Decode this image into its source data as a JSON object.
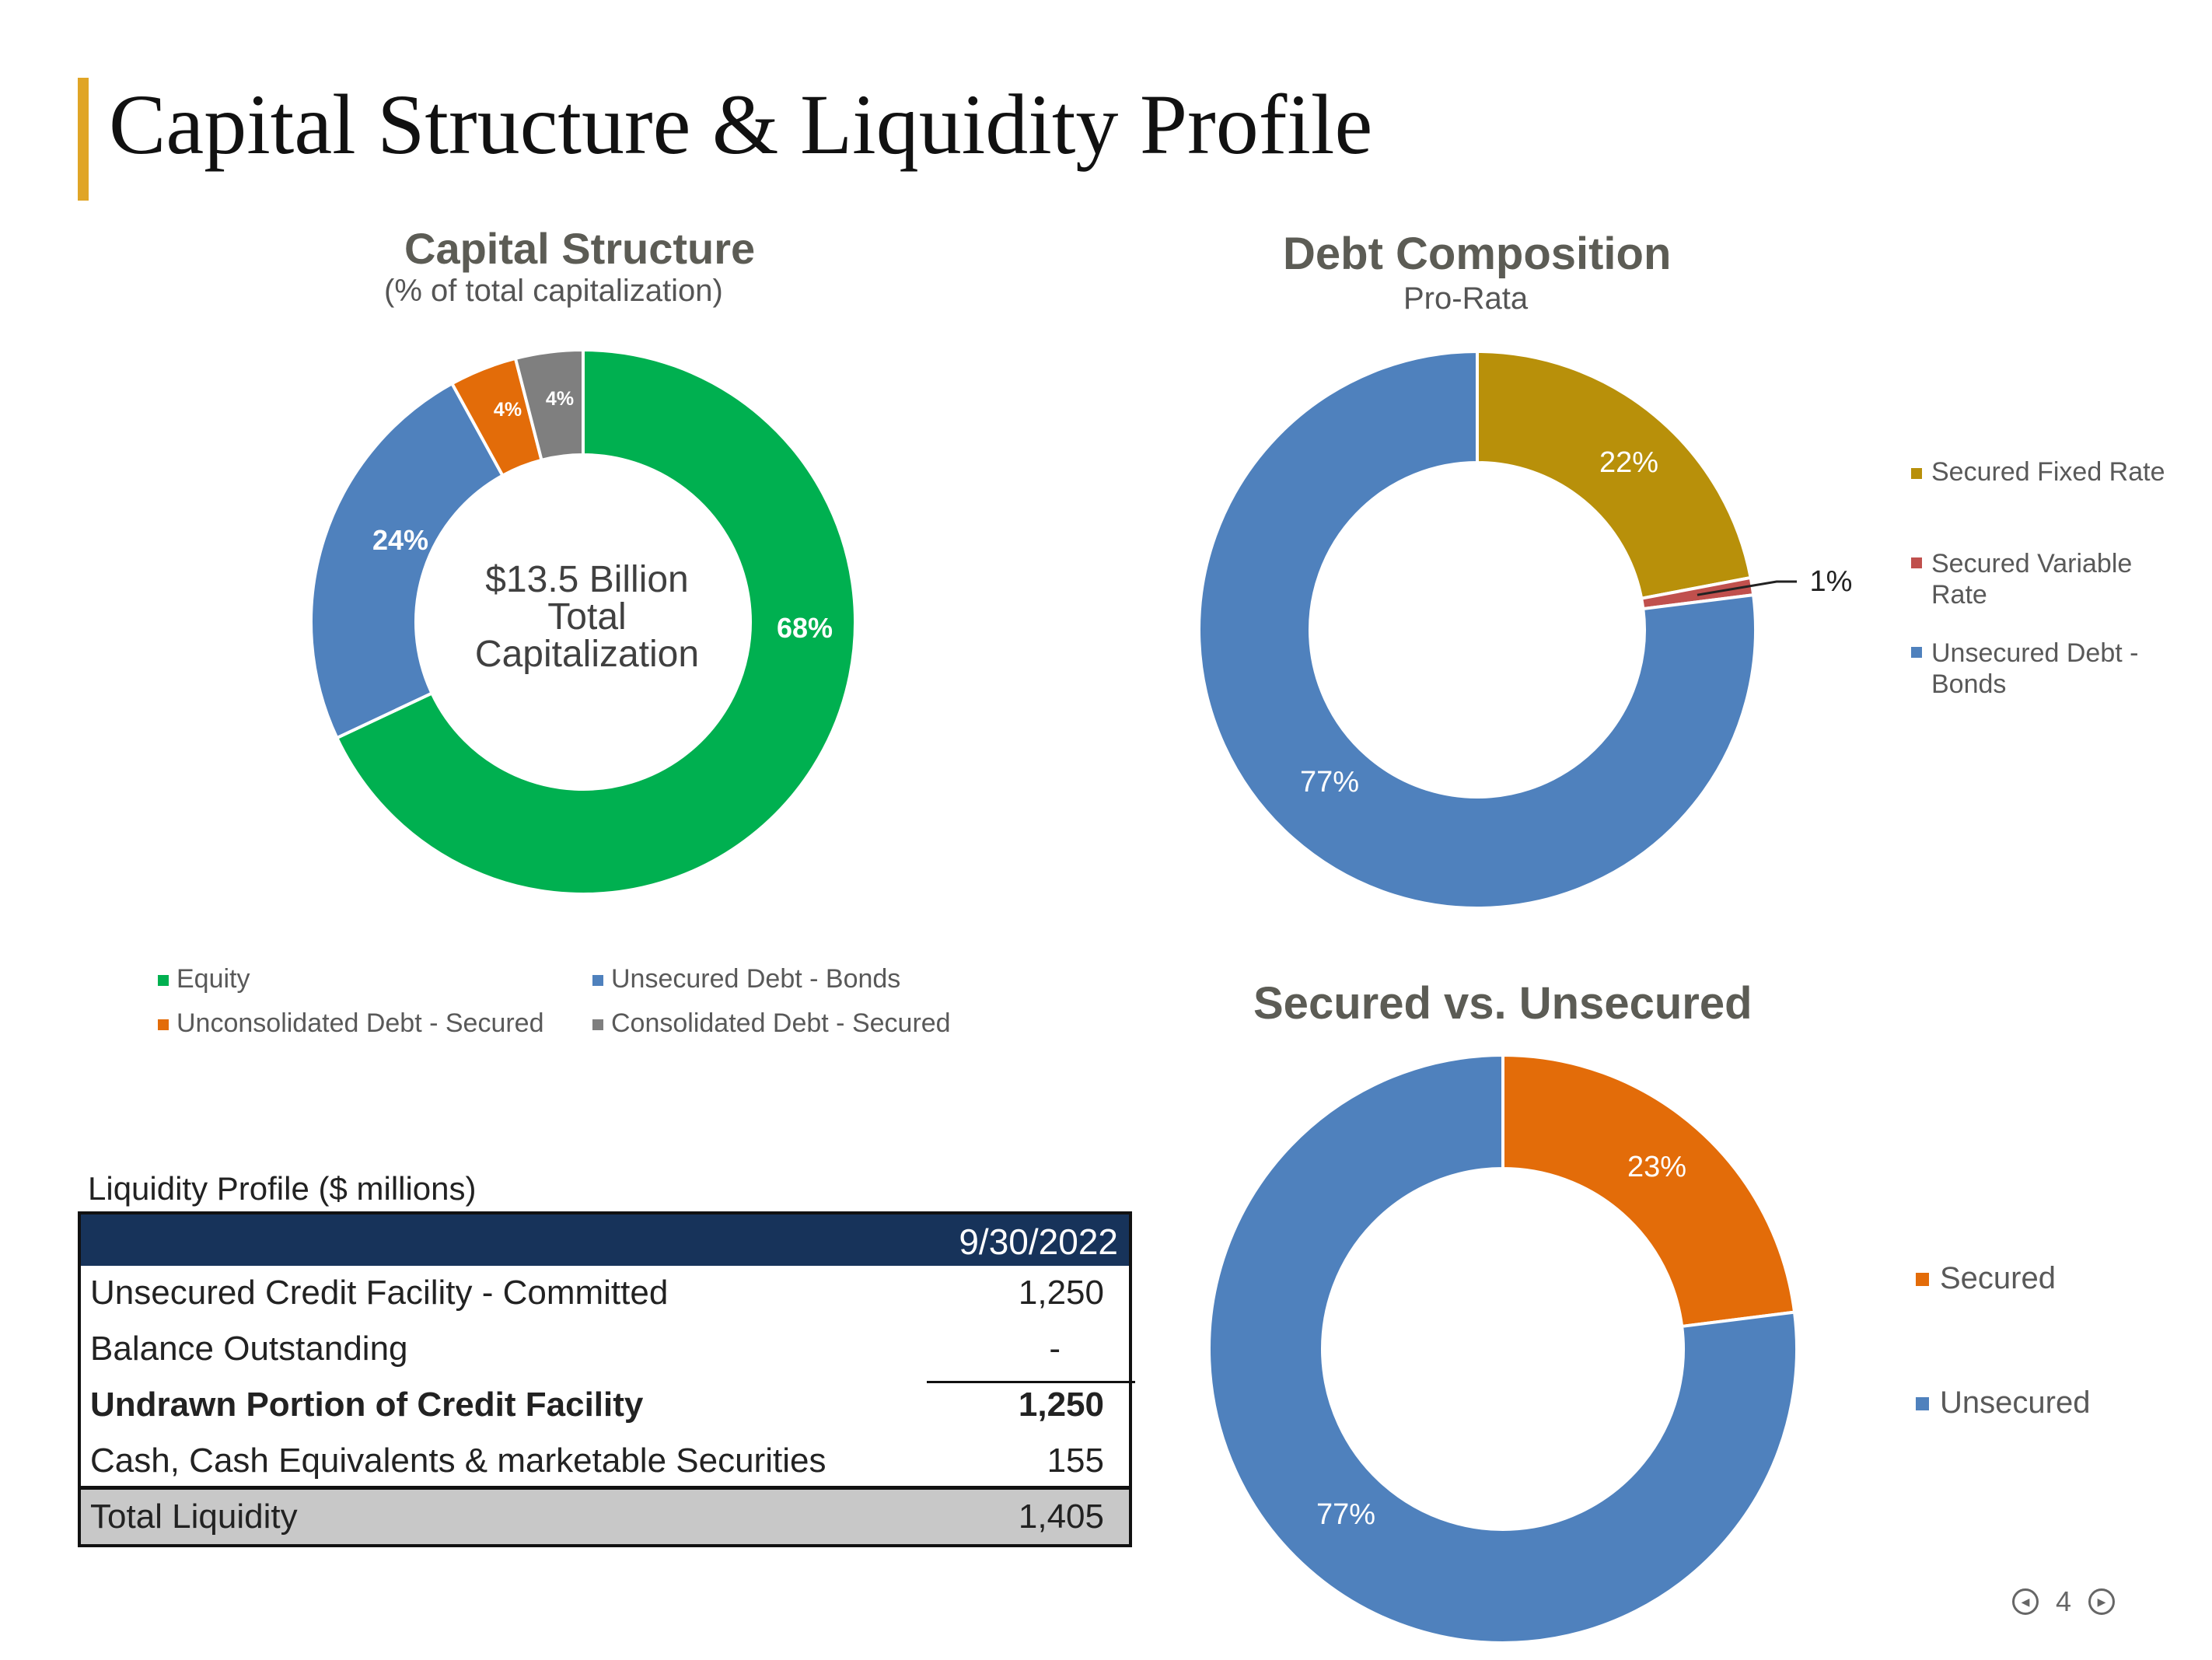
{
  "page": {
    "title": "Capital Structure & Liquidity Profile",
    "page_number": "4",
    "accent_color": "#e0a526"
  },
  "capital_center": {
    "line1": "$13.5 Billion",
    "line2": "Total",
    "line3": "Capitalization"
  },
  "liquidity": {
    "caption": "Liquidity Profile ($ millions)",
    "column_header": "9/30/2022",
    "rows": [
      {
        "label": "Unsecured Credit Facility - Committed",
        "value": "1,250"
      },
      {
        "label": "Balance Outstanding",
        "value": "-"
      },
      {
        "label": "Undrawn Portion of Credit Facility",
        "value": "1,250"
      },
      {
        "label": "Cash, Cash Equivalents & marketable Securities",
        "value": "155"
      }
    ],
    "total": {
      "label": "Total Liquidity",
      "value": "1,405"
    },
    "header_color": "#17335a",
    "total_color": "#c8c8c8"
  },
  "chart_data": [
    {
      "type": "pie",
      "donut": true,
      "title": "Capital Structure",
      "subtitle": "(% of total capitalization)",
      "legend_position": "bottom",
      "series": [
        {
          "name": "Equity",
          "value": 68,
          "label": "68%",
          "color": "#00b050"
        },
        {
          "name": "Unsecured Debt - Bonds",
          "value": 24,
          "label": "24%",
          "color": "#4f81bd"
        },
        {
          "name": "Unconsolidated Debt - Secured",
          "value": 4,
          "label": "4%",
          "color": "#e36c09"
        },
        {
          "name": "Consolidated Debt - Secured",
          "value": 4,
          "label": "4%",
          "color": "#7f7f7f"
        }
      ]
    },
    {
      "type": "pie",
      "donut": true,
      "title": "Debt Composition",
      "subtitle": "Pro-Rata",
      "legend_position": "right",
      "series": [
        {
          "name": "Secured Fixed Rate",
          "value": 22,
          "label": "22%",
          "color": "#b8900a"
        },
        {
          "name": "Secured Variable Rate",
          "value": 1,
          "label": "1%",
          "color": "#c0504d"
        },
        {
          "name": "Unsecured Debt - Bonds",
          "value": 77,
          "label": "77%",
          "color": "#4f81bd"
        }
      ]
    },
    {
      "type": "pie",
      "donut": true,
      "title": "Secured vs. Unsecured",
      "legend_position": "right",
      "series": [
        {
          "name": "Secured",
          "value": 23,
          "label": "23%",
          "color": "#e36c09"
        },
        {
          "name": "Unsecured",
          "value": 77,
          "label": "77%",
          "color": "#4f81bd"
        }
      ]
    }
  ]
}
